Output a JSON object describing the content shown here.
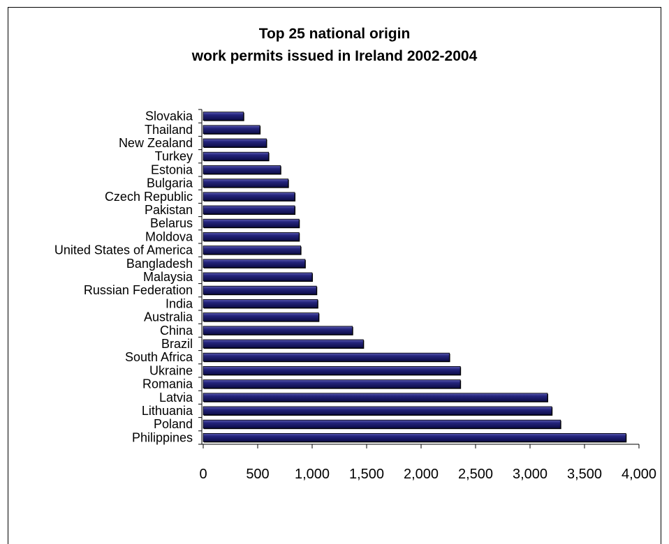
{
  "chart_data": {
    "type": "bar",
    "orientation": "horizontal",
    "title_lines": [
      "Top 25 national origin",
      "work permits issued in Ireland 2002-2004"
    ],
    "categories": [
      "Slovakia",
      "Thailand",
      "New Zealand",
      "Turkey",
      "Estonia",
      "Bulgaria",
      "Czech Republic",
      "Pakistan",
      "Belarus",
      "Moldova",
      "United States of America",
      "Bangladesh",
      "Malaysia",
      "Russian Federation",
      "India",
      "Australia",
      "China",
      "Brazil",
      "South Africa",
      "Ukraine",
      "Romania",
      "Latvia",
      "Lithuania",
      "Poland",
      "Philippines"
    ],
    "values": [
      370,
      520,
      580,
      600,
      710,
      780,
      840,
      840,
      880,
      880,
      895,
      935,
      1000,
      1040,
      1050,
      1060,
      1370,
      1470,
      2260,
      2360,
      2360,
      3160,
      3200,
      3280,
      3880
    ],
    "xlim": [
      0,
      4000
    ],
    "xticks": [
      0,
      500,
      1000,
      1500,
      2000,
      2500,
      3000,
      3500,
      4000
    ],
    "xtick_labels": [
      "0",
      "500",
      "1,000",
      "1,500",
      "2,000",
      "2,500",
      "3,000",
      "3,500",
      "4,000"
    ],
    "bar_color": "#1c1c6b",
    "grid": false,
    "legend": "none"
  }
}
